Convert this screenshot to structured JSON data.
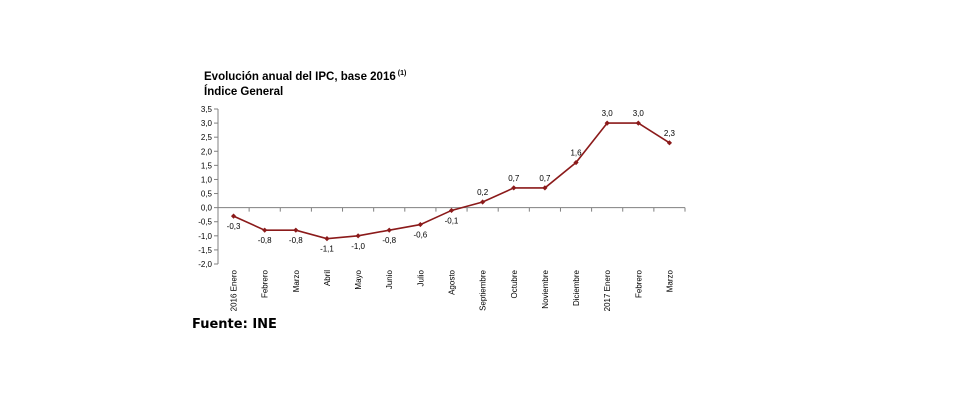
{
  "chart_data": {
    "type": "line",
    "title": "Evolución anual del IPC, base 2016",
    "title_note": "(1)",
    "subtitle": "Índice General",
    "categories": [
      "2016 Enero",
      "Febrero",
      "Marzo",
      "Abril",
      "Mayo",
      "Junio",
      "Julio",
      "Agosto",
      "Septiembre",
      "Octubre",
      "Noviembre",
      "Diciembre",
      "2017 Enero",
      "Febrero",
      "Marzo"
    ],
    "series": [
      {
        "values": [
          -0.3,
          -0.8,
          -0.8,
          -1.1,
          -1.0,
          -0.8,
          -0.6,
          -0.1,
          0.2,
          0.7,
          0.7,
          1.6,
          3.0,
          3.0,
          2.3
        ],
        "labels": [
          "-0,3",
          "-0,8",
          "-0,8",
          "-1,1",
          "-1,0",
          "-0,8",
          "-0,6",
          "-0,1",
          "0,2",
          "0,7",
          "0,7",
          "1,6",
          "3,0",
          "3,0",
          "2,3"
        ]
      }
    ],
    "ylim": [
      -2.0,
      3.5
    ],
    "yticks": [
      "3,5",
      "3,0",
      "2,5",
      "2,0",
      "1,5",
      "1,0",
      "0,5",
      "0,0",
      "-0,5",
      "-1,0",
      "-1,5",
      "-2,0"
    ],
    "grid": false,
    "colors": {
      "line": "#8b1a1a",
      "axis": "#808080"
    }
  },
  "source": "Fuente: INE"
}
